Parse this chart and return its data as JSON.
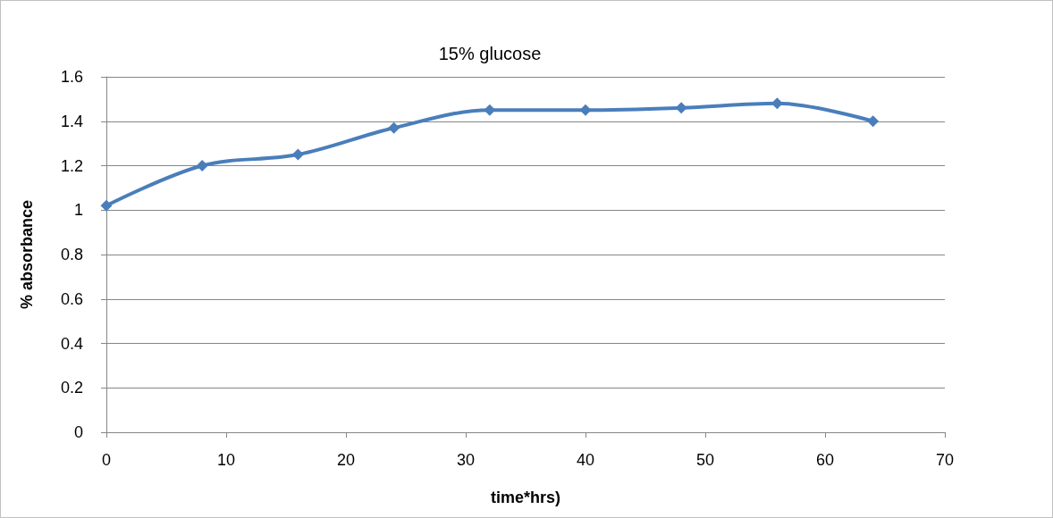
{
  "chart_data": {
    "type": "line",
    "title": "15% glucose",
    "xlabel": "time*hrs)",
    "ylabel": "% absorbance",
    "x": [
      0,
      8,
      16,
      24,
      32,
      40,
      48,
      56,
      64
    ],
    "series": [
      {
        "color": "#4a7ebb",
        "values": [
          1.02,
          1.2,
          1.25,
          1.37,
          1.45,
          1.45,
          1.46,
          1.48,
          1.4
        ]
      }
    ],
    "xlim": [
      0,
      70
    ],
    "xticks": [
      0,
      10,
      20,
      30,
      40,
      50,
      60,
      70
    ],
    "ylim": [
      0,
      1.6
    ],
    "yticks": [
      0,
      0.2,
      0.4,
      0.6,
      0.8,
      1,
      1.2,
      1.4,
      1.6
    ],
    "grid": "y",
    "marker": "diamond",
    "line_style": "solid"
  }
}
